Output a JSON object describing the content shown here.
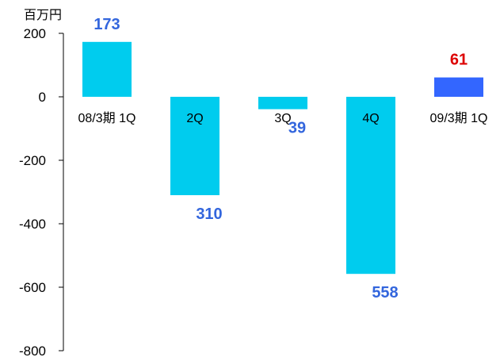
{
  "chart_data": {
    "type": "bar",
    "unit_label": "百万円",
    "categories": [
      "08/3期 1Q",
      "2Q",
      "3Q",
      "4Q",
      "09/3期 1Q"
    ],
    "values": [
      173,
      -310,
      -39,
      -558,
      61
    ],
    "data_labels": [
      "173",
      "310",
      "39",
      "558",
      "61"
    ],
    "bar_colors": [
      "#00ccee",
      "#00ccee",
      "#00ccee",
      "#00ccee",
      "#3366ff"
    ],
    "label_colors": [
      "#3366dd",
      "#3366dd",
      "#3366dd",
      "#3366dd",
      "#dd0000"
    ],
    "yticks": [
      "200",
      "0",
      "-200",
      "-400",
      "-600",
      "-800"
    ],
    "ylim": [
      -800,
      200
    ],
    "grid": false,
    "legend": "none"
  }
}
